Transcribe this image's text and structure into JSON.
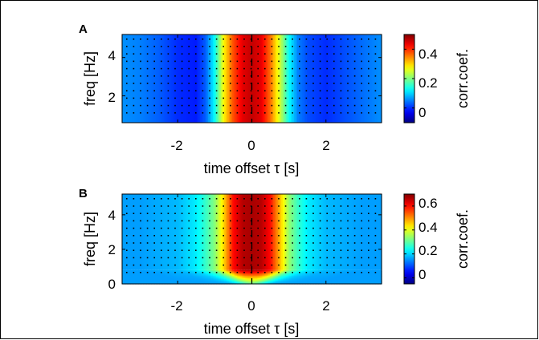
{
  "chart_data": [
    {
      "panel_label": "A",
      "type": "heatmap",
      "title": "",
      "xlabel": "time offset τ [s]",
      "ylabel": "freq [Hz]",
      "xlim": [
        -3.5,
        3.5
      ],
      "ylim": [
        0.6,
        5.2
      ],
      "x_ticks": [
        -2,
        0,
        2
      ],
      "x_tick_labels": [
        "-2",
        "0",
        "2"
      ],
      "y_ticks": [
        2,
        4
      ],
      "y_tick_labels": [
        "2",
        "4"
      ],
      "colorbar_label": "corr.coef.",
      "color_range": [
        -0.1,
        0.5
      ],
      "colorbar_ticks": [
        0,
        0.2,
        0.4
      ],
      "colorbar_tick_labels": [
        "0",
        "0.2",
        "0.4"
      ],
      "profile_tau": [
        -3.5,
        -3.0,
        -2.5,
        -2.0,
        -1.5,
        -1.25,
        -1.0,
        -0.75,
        -0.5,
        -0.25,
        0,
        0.25,
        0.5,
        0.75,
        1.0,
        1.25,
        1.5,
        2.0,
        2.5,
        3.0,
        3.5
      ],
      "profile_corr": [
        0.06,
        0.05,
        0.03,
        0.0,
        -0.01,
        0.03,
        0.13,
        0.28,
        0.38,
        0.44,
        0.46,
        0.44,
        0.36,
        0.25,
        0.13,
        0.05,
        0.02,
        0.0,
        0.02,
        0.04,
        0.06
      ],
      "significance_dots": true,
      "zero_lag_line": true
    },
    {
      "panel_label": "B",
      "type": "heatmap",
      "title": "",
      "xlabel": "time offset τ [s]",
      "ylabel": "freq [Hz]",
      "xlim": [
        -3.5,
        3.5
      ],
      "ylim": [
        0,
        5.2
      ],
      "x_ticks": [
        -2,
        0,
        2
      ],
      "x_tick_labels": [
        "-2",
        "0",
        "2"
      ],
      "y_ticks": [
        0,
        2,
        4
      ],
      "y_tick_labels": [
        "0",
        "2",
        "4"
      ],
      "colorbar_label": "corr.coef.",
      "color_range": [
        -0.05,
        0.7
      ],
      "colorbar_ticks": [
        0,
        0.2,
        0.4,
        0.6
      ],
      "colorbar_tick_labels": [
        "0",
        "0.2",
        "0.4",
        "0.6"
      ],
      "profile_tau": [
        -3.5,
        -3.0,
        -2.5,
        -2.0,
        -1.5,
        -1.25,
        -1.0,
        -0.75,
        -0.5,
        -0.25,
        0,
        0.25,
        0.5,
        0.75,
        1.0,
        1.25,
        1.5,
        2.0,
        2.5,
        3.0,
        3.5
      ],
      "profile_corr": [
        0.16,
        0.16,
        0.17,
        0.18,
        0.22,
        0.27,
        0.33,
        0.45,
        0.6,
        0.66,
        0.67,
        0.66,
        0.6,
        0.47,
        0.34,
        0.27,
        0.22,
        0.18,
        0.17,
        0.16,
        0.16
      ],
      "low_freq_corr_at_0": 0.3,
      "significance_dots": true,
      "zero_lag_line": true
    }
  ]
}
